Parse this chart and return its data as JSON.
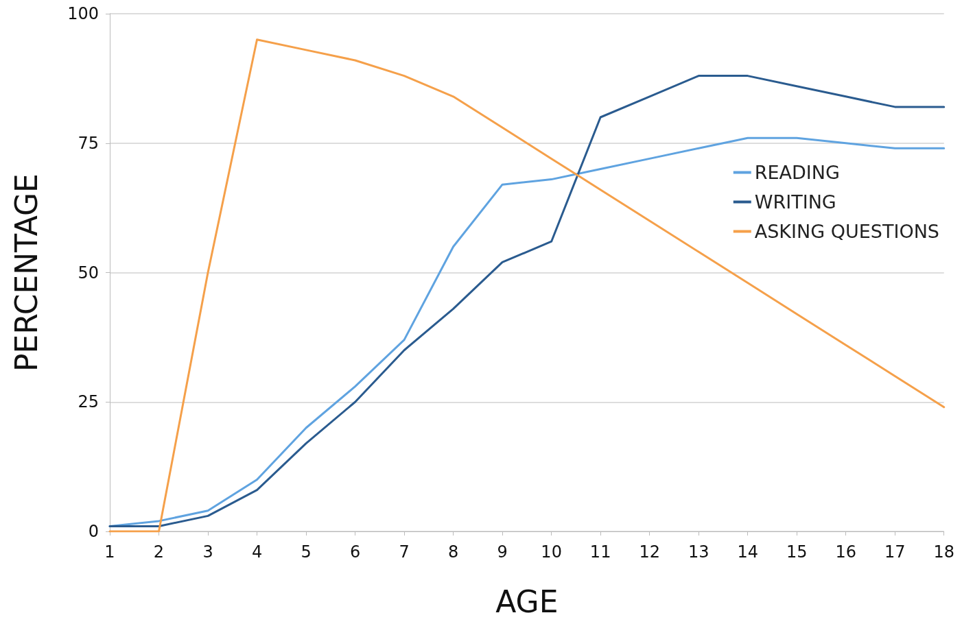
{
  "chart_data": {
    "type": "line",
    "xlabel": "AGE",
    "ylabel": "PERCENTAGE",
    "x": [
      1,
      2,
      3,
      4,
      5,
      6,
      7,
      8,
      9,
      10,
      11,
      12,
      13,
      14,
      15,
      16,
      17,
      18
    ],
    "xlim": [
      1,
      18
    ],
    "xticks": [
      1,
      2,
      3,
      4,
      5,
      6,
      7,
      8,
      9,
      10,
      11,
      12,
      13,
      14,
      15,
      16,
      17,
      18
    ],
    "ylim": [
      0,
      100
    ],
    "yticks": [
      0,
      25,
      50,
      75,
      100
    ],
    "grid": "y",
    "legend": "right",
    "series": [
      {
        "name": "READING",
        "color": "#5fa3e0",
        "values": [
          1,
          2,
          4,
          10,
          20,
          28,
          37,
          55,
          67,
          68,
          70,
          72,
          74,
          76,
          76,
          75,
          74,
          74
        ]
      },
      {
        "name": "WRITING",
        "color": "#2a5b8f",
        "values": [
          1,
          1,
          3,
          8,
          17,
          25,
          35,
          43,
          52,
          56,
          80,
          84,
          88,
          88,
          86,
          84,
          82,
          82
        ]
      },
      {
        "name": "ASKING QUESTIONS",
        "color": "#f5a04a",
        "values": [
          0,
          0,
          50,
          95,
          93,
          91,
          88,
          84,
          78,
          72,
          66,
          60,
          54,
          48,
          42,
          36,
          30,
          24
        ]
      }
    ]
  }
}
